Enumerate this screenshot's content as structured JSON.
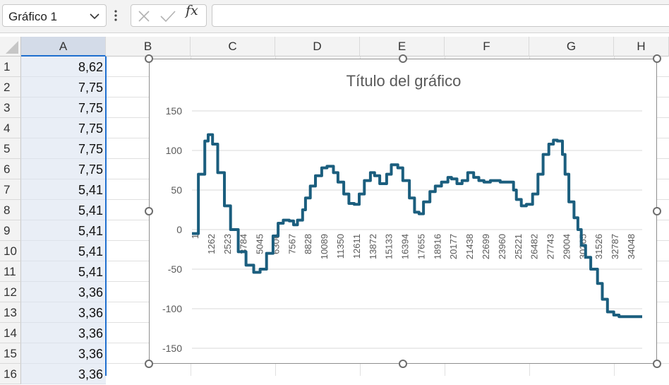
{
  "formula_bar": {
    "name_box": "Gráfico 1",
    "fx_label": "fx",
    "formula_value": ""
  },
  "columns": [
    "A",
    "B",
    "C",
    "D",
    "E",
    "F",
    "G",
    "H"
  ],
  "rows": [
    {
      "num": "1",
      "a": "8,62"
    },
    {
      "num": "2",
      "a": "7,75"
    },
    {
      "num": "3",
      "a": "7,75"
    },
    {
      "num": "4",
      "a": "7,75"
    },
    {
      "num": "5",
      "a": "7,75"
    },
    {
      "num": "6",
      "a": "7,75"
    },
    {
      "num": "7",
      "a": "5,41"
    },
    {
      "num": "8",
      "a": "5,41"
    },
    {
      "num": "9",
      "a": "5,41"
    },
    {
      "num": "10",
      "a": "5,41"
    },
    {
      "num": "11",
      "a": "5,41"
    },
    {
      "num": "12",
      "a": "3,36"
    },
    {
      "num": "13",
      "a": "3,36"
    },
    {
      "num": "14",
      "a": "3,36"
    },
    {
      "num": "15",
      "a": "3,36"
    },
    {
      "num": "16",
      "a": "3,36"
    }
  ],
  "chart_data": {
    "type": "line",
    "title": "Título del gráfico",
    "xlabel": "",
    "ylabel": "",
    "ylim": [
      -150,
      150
    ],
    "yticks": [
      "150",
      "100",
      "50",
      "0",
      "-50",
      "-100",
      "-150"
    ],
    "xticks": [
      "1",
      "1262",
      "2523",
      "3784",
      "5045",
      "6306",
      "7567",
      "8828",
      "10089",
      "11350",
      "12611",
      "13872",
      "15133",
      "16394",
      "17655",
      "18916",
      "20177",
      "21438",
      "22699",
      "23960",
      "25221",
      "26482",
      "27743",
      "29004",
      "30265",
      "31526",
      "32787",
      "34048"
    ],
    "grid": true,
    "line_color": "#1b5e7e",
    "x": [
      0,
      500,
      1000,
      1262,
      1600,
      2000,
      2523,
      3000,
      3600,
      4200,
      4800,
      5300,
      5800,
      6306,
      6700,
      7100,
      7567,
      7900,
      8200,
      8600,
      8828,
      9200,
      9600,
      10089,
      10500,
      11000,
      11350,
      11800,
      12200,
      12611,
      13000,
      13400,
      13872,
      14200,
      14600,
      15133,
      15500,
      16000,
      16394,
      16900,
      17300,
      17655,
      18000,
      18500,
      18916,
      19400,
      19900,
      20177,
      20600,
      21000,
      21438,
      21900,
      22300,
      22699,
      23200,
      23600,
      23960,
      24500,
      25000,
      25221,
      25600,
      26000,
      26482,
      26900,
      27300,
      27743,
      28100,
      28400,
      28800,
      29004,
      29300,
      29700,
      30000,
      30265,
      30600,
      31000,
      31526,
      31900,
      32300,
      32787,
      33200,
      33600,
      34048,
      34500,
      35000
    ],
    "y": [
      -5,
      70,
      112,
      120,
      108,
      72,
      30,
      0,
      -28,
      -45,
      -54,
      -50,
      -30,
      -8,
      8,
      12,
      11,
      6,
      12,
      25,
      40,
      55,
      68,
      78,
      80,
      72,
      60,
      45,
      33,
      32,
      45,
      62,
      72,
      68,
      58,
      70,
      82,
      78,
      62,
      40,
      22,
      20,
      35,
      48,
      55,
      60,
      66,
      64,
      58,
      62,
      72,
      66,
      62,
      60,
      62,
      62,
      60,
      60,
      50,
      38,
      30,
      32,
      45,
      70,
      95,
      108,
      113,
      112,
      95,
      70,
      35,
      15,
      0,
      -20,
      -35,
      -50,
      -68,
      -88,
      -104,
      -108,
      -110,
      -110,
      -110,
      -110,
      -110
    ]
  }
}
